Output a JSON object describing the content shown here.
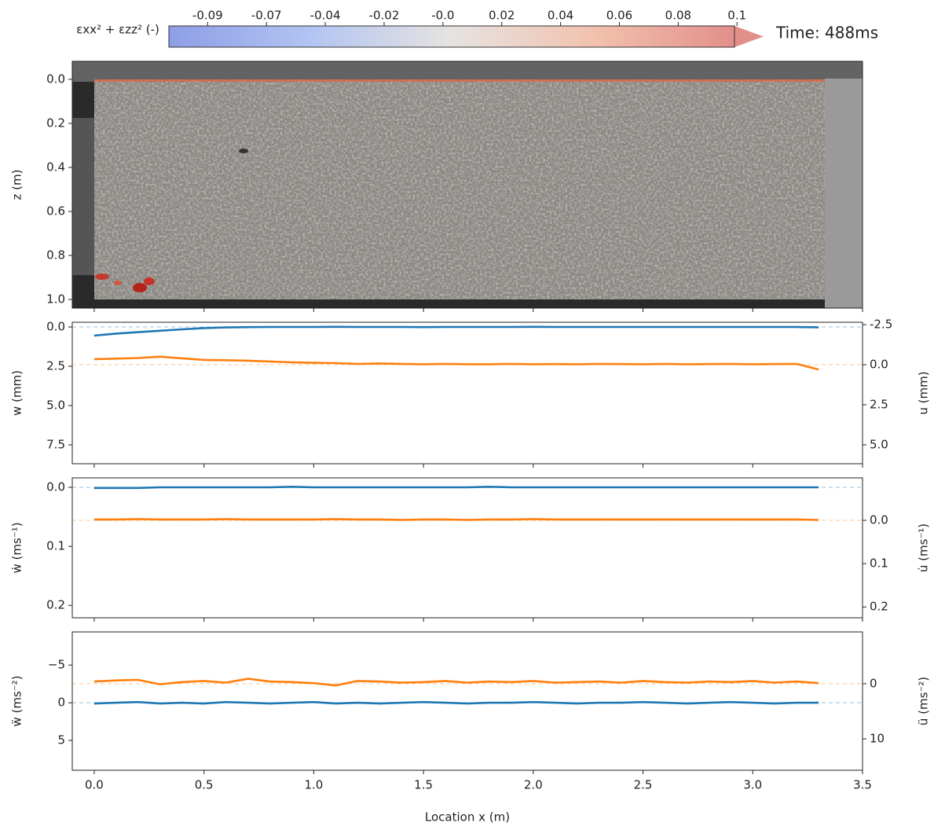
{
  "chart_data": [
    {
      "type": "colorbar",
      "label": "εxx² + εzz² (-)",
      "clim": [
        -0.1,
        0.1
      ],
      "ticks": [
        -0.0863,
        -0.0655,
        -0.0447,
        -0.0239,
        {
          "value": -0.0031,
          "label": "-0.0"
        },
        0.0177,
        0.0385,
        0.0593,
        0.0801,
        0.1009
      ],
      "tick_labels": [
        "-0.09",
        "-0.07",
        "-0.04",
        "-0.02",
        "-0.0",
        "0.02",
        "0.04",
        "0.06",
        "0.08",
        "0.1"
      ],
      "annotation": "Time: 488ms"
    },
    {
      "type": "image",
      "ylabel": "z (m)",
      "ylim": [
        -0.082,
        1.039
      ],
      "y_inverted": true,
      "yticks": [
        {
          "value": 0,
          "label": "0.0"
        },
        0.2,
        0.4,
        0.6,
        0.8,
        {
          "value": 1,
          "label": "1.0"
        }
      ]
    },
    {
      "type": "line",
      "ylabel": "w (mm)",
      "y2label": "u (mm)",
      "y_inverted": true,
      "ylim": [
        -0.3,
        8.7
      ],
      "yticks": [
        {
          "value": 0,
          "label": "0.0"
        },
        2.5,
        {
          "value": 5,
          "label": "5.0"
        },
        7.5
      ],
      "y2lim": [
        -2.65,
        6.18
      ],
      "y2ticks": [
        -2.5,
        {
          "value": 0,
          "label": "0.0"
        },
        2.5,
        {
          "value": 5,
          "label": "5.0"
        }
      ],
      "x": [
        0.0,
        0.1,
        0.2,
        0.3,
        0.4,
        0.5,
        0.6,
        0.7,
        0.8,
        0.9,
        1.0,
        1.1,
        1.2,
        1.3,
        1.4,
        1.5,
        1.6,
        1.7,
        1.8,
        1.9,
        2.0,
        2.1,
        2.2,
        2.3,
        2.4,
        2.5,
        2.6,
        2.7,
        2.8,
        2.9,
        3.0,
        3.1,
        3.2,
        3.3
      ],
      "series": [
        {
          "color": "#1f77b4",
          "values": [
            0.55,
            0.42,
            0.33,
            0.24,
            0.15,
            0.07,
            0.03,
            0.01,
            0.0,
            0.0,
            0.0,
            -0.01,
            0.0,
            0.0,
            0.0,
            0.01,
            0.0,
            0.0,
            0.0,
            0.0,
            -0.01,
            0.0,
            0.0,
            0.0,
            0.0,
            0.0,
            0.0,
            0.0,
            0.0,
            0.0,
            0.0,
            0.0,
            0.0,
            0.02
          ]
        },
        {
          "color": "#ff7f0e",
          "axis": "y2",
          "values": [
            -0.35,
            -0.38,
            -0.42,
            -0.5,
            -0.4,
            -0.3,
            -0.28,
            -0.25,
            -0.2,
            -0.15,
            -0.12,
            -0.1,
            -0.05,
            -0.08,
            -0.05,
            -0.03,
            -0.05,
            -0.03,
            -0.03,
            -0.05,
            -0.03,
            -0.04,
            -0.03,
            -0.05,
            -0.04,
            -0.03,
            -0.05,
            -0.03,
            -0.04,
            -0.05,
            -0.03,
            -0.04,
            -0.05,
            0.3
          ]
        }
      ]
    },
    {
      "type": "line",
      "ylabel": "ẇ (ms⁻¹)",
      "y2label": "u̇ (ms⁻¹)",
      "y_inverted": true,
      "ylim": [
        -0.016,
        0.221
      ],
      "yticks": [
        {
          "value": 0,
          "label": "0.0"
        },
        0.1,
        0.2
      ],
      "y2lim": [
        -0.098,
        0.225
      ],
      "y2ticks": [
        {
          "value": 0,
          "label": "0.0"
        },
        0.1,
        0.2
      ],
      "x": [
        0.0,
        0.1,
        0.2,
        0.3,
        0.4,
        0.5,
        0.6,
        0.7,
        0.8,
        0.9,
        1.0,
        1.1,
        1.2,
        1.3,
        1.4,
        1.5,
        1.6,
        1.7,
        1.8,
        1.9,
        2.0,
        2.1,
        2.2,
        2.3,
        2.4,
        2.5,
        2.6,
        2.7,
        2.8,
        2.9,
        3.0,
        3.1,
        3.2,
        3.3
      ],
      "series": [
        {
          "color": "#1f77b4",
          "values": [
            0.001,
            0.001,
            0.001,
            0.0,
            0.0,
            0.0,
            0.0,
            0.0,
            0.0,
            -0.001,
            0.0,
            0.0,
            0.0,
            0.0,
            0.0,
            0.0,
            0.0,
            0.0,
            -0.001,
            0.0,
            0.0,
            0.0,
            0.0,
            0.0,
            0.0,
            0.0,
            0.0,
            0.0,
            0.0,
            0.0,
            0.0,
            0.0,
            0.0,
            0.0
          ]
        },
        {
          "color": "#ff7f0e",
          "axis": "y2",
          "values": [
            -0.002,
            -0.002,
            -0.003,
            -0.002,
            -0.002,
            -0.002,
            -0.003,
            -0.002,
            -0.002,
            -0.002,
            -0.002,
            -0.003,
            -0.002,
            -0.002,
            -0.001,
            -0.002,
            -0.002,
            -0.001,
            -0.002,
            -0.002,
            -0.003,
            -0.002,
            -0.002,
            -0.002,
            -0.002,
            -0.002,
            -0.002,
            -0.002,
            -0.002,
            -0.002,
            -0.002,
            -0.002,
            -0.002,
            -0.001
          ]
        }
      ]
    },
    {
      "type": "line",
      "ylabel": "ẅ (ms⁻²)",
      "y2label": "ü (ms⁻²)",
      "y_inverted": true,
      "xlabel": "Location x (m)",
      "xlim": [
        -0.1,
        3.5
      ],
      "xticks": [
        {
          "value": 0,
          "label": "0.0"
        },
        0.5,
        {
          "value": 1,
          "label": "1.0"
        },
        1.5,
        {
          "value": 2,
          "label": "2.0"
        },
        2.5,
        {
          "value": 3,
          "label": "3.0"
        },
        3.5
      ],
      "ylim": [
        -9.4,
        8.96
      ],
      "yticks": [
        {
          "value": -5,
          "label": "−5"
        },
        0,
        5
      ],
      "y2lim": [
        -9.4,
        15.7
      ],
      "y2ticks": [
        0,
        10
      ],
      "x": [
        0.0,
        0.1,
        0.2,
        0.3,
        0.4,
        0.5,
        0.6,
        0.7,
        0.8,
        0.9,
        1.0,
        1.1,
        1.2,
        1.3,
        1.4,
        1.5,
        1.6,
        1.7,
        1.8,
        1.9,
        2.0,
        2.1,
        2.2,
        2.3,
        2.4,
        2.5,
        2.6,
        2.7,
        2.8,
        2.9,
        3.0,
        3.1,
        3.2,
        3.3
      ],
      "series": [
        {
          "color": "#1f77b4",
          "values": [
            0.1,
            0.0,
            -0.1,
            0.1,
            0.0,
            0.1,
            -0.1,
            0.0,
            0.1,
            0.0,
            -0.1,
            0.1,
            0.0,
            0.1,
            0.0,
            -0.1,
            0.0,
            0.1,
            0.0,
            0.0,
            -0.1,
            0.0,
            0.1,
            0.0,
            0.0,
            -0.1,
            0.0,
            0.1,
            0.0,
            -0.1,
            0.0,
            0.1,
            0.0,
            0.0
          ]
        },
        {
          "color": "#ff7f0e",
          "axis": "y2",
          "values": [
            -0.4,
            -0.6,
            -0.7,
            0.1,
            -0.3,
            -0.5,
            -0.2,
            -0.9,
            -0.4,
            -0.3,
            -0.1,
            0.3,
            -0.5,
            -0.4,
            -0.2,
            -0.3,
            -0.5,
            -0.2,
            -0.4,
            -0.3,
            -0.5,
            -0.2,
            -0.3,
            -0.4,
            -0.2,
            -0.5,
            -0.3,
            -0.2,
            -0.4,
            -0.3,
            -0.5,
            -0.2,
            -0.4,
            -0.1
          ]
        }
      ]
    }
  ]
}
